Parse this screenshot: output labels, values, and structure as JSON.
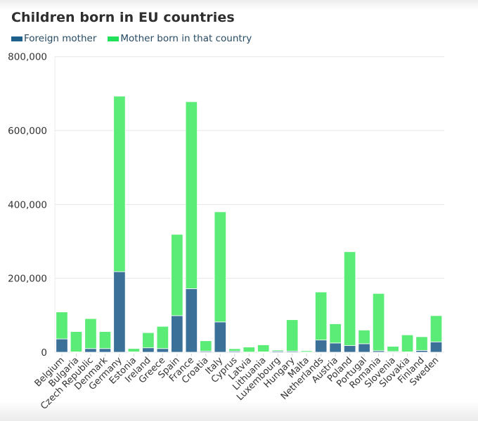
{
  "chart_data": {
    "type": "bar",
    "stacked": true,
    "title": "Children born in EU countries",
    "xlabel": "",
    "ylabel": "",
    "ylim": [
      0,
      800000
    ],
    "yticks": [
      0,
      200000,
      400000,
      600000,
      800000
    ],
    "ytick_labels": [
      "0",
      "200,000",
      "400,000",
      "600,000",
      "800,000"
    ],
    "grid": true,
    "legend_position": "top-left",
    "categories": [
      "Belgium",
      "Bulgaria",
      "Czech Republic",
      "Denmark",
      "Germany",
      "Estonia",
      "Ireland",
      "Greece",
      "Spain",
      "France",
      "Croatia",
      "Italy",
      "Cyprus",
      "Latvia",
      "Lithuania",
      "Luxembourg",
      "Hungary",
      "Malta",
      "Netherlands",
      "Austria",
      "Poland",
      "Portugal",
      "Romania",
      "Slovenia",
      "Slovakia",
      "Finland",
      "Sweden"
    ],
    "series": [
      {
        "name": "Foreign mother",
        "color": "#3b7099",
        "values": [
          36000,
          1000,
          10000,
          10000,
          218000,
          1000,
          12000,
          10000,
          99000,
          172000,
          3000,
          82000,
          3000,
          500,
          1000,
          3000,
          3000,
          500,
          33000,
          25000,
          18000,
          23000,
          4000,
          2000,
          1000,
          5000,
          28000
        ]
      },
      {
        "name": "Mother born in that country",
        "color": "#5beb77",
        "values": [
          73000,
          55000,
          81000,
          46000,
          475000,
          9000,
          41000,
          60000,
          220000,
          506000,
          28000,
          298000,
          6500,
          13500,
          19000,
          3000,
          85000,
          3500,
          130000,
          52000,
          254000,
          37000,
          155000,
          14000,
          46000,
          37000,
          71000
        ]
      }
    ]
  }
}
